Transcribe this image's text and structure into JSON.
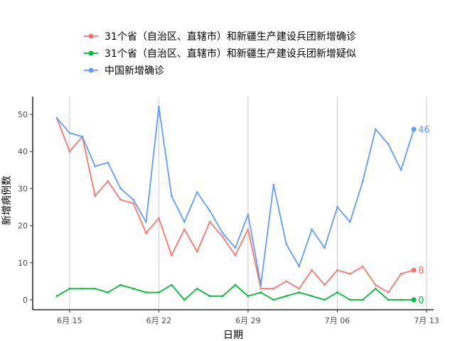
{
  "chart_data": {
    "type": "line",
    "xlabel": "日期",
    "ylabel": "新增病例数",
    "ylim": [
      0,
      52
    ],
    "y_ticks": [
      0,
      10,
      20,
      30,
      40,
      50
    ],
    "x_range": [
      "2020-06-13",
      "2020-07-13"
    ],
    "x_ticks": [
      {
        "date": "2020-06-15",
        "label": "6月 15"
      },
      {
        "date": "2020-06-22",
        "label": "6月 22"
      },
      {
        "date": "2020-06-29",
        "label": "6月 29"
      },
      {
        "date": "2020-07-06",
        "label": "7月 06"
      },
      {
        "date": "2020-07-13",
        "label": "7月 13"
      }
    ],
    "grid": "vertical major lines",
    "legend_position": "top",
    "x": [
      "2020-06-14",
      "2020-06-15",
      "2020-06-16",
      "2020-06-17",
      "2020-06-18",
      "2020-06-19",
      "2020-06-20",
      "2020-06-21",
      "2020-06-22",
      "2020-06-23",
      "2020-06-24",
      "2020-06-25",
      "2020-06-26",
      "2020-06-27",
      "2020-06-28",
      "2020-06-29",
      "2020-06-30",
      "2020-07-01",
      "2020-07-02",
      "2020-07-03",
      "2020-07-04",
      "2020-07-05",
      "2020-07-06",
      "2020-07-07",
      "2020-07-08",
      "2020-07-09",
      "2020-07-10",
      "2020-07-11",
      "2020-07-12"
    ],
    "series": [
      {
        "name": "31个省（自治区、直辖市）和新疆生产建设兵团新增确诊",
        "color": "#F8766D",
        "values": [
          49,
          40,
          44,
          28,
          32,
          27,
          26,
          18,
          22,
          12,
          19,
          13,
          21,
          17,
          12,
          19,
          3,
          3,
          5,
          3,
          8,
          4,
          8,
          7,
          9,
          4,
          2,
          7,
          8
        ],
        "end_label": "8"
      },
      {
        "name": "31个省（自治区、直辖市）和新疆生产建设兵团新增疑似",
        "color": "#00BA38",
        "values": [
          1,
          3,
          3,
          3,
          2,
          4,
          3,
          2,
          2,
          4,
          0,
          3,
          1,
          1,
          4,
          1,
          2,
          0,
          1,
          2,
          1,
          0,
          2,
          0,
          0,
          3,
          0,
          0,
          0
        ],
        "end_label": "0"
      },
      {
        "name": "中国新增确诊",
        "color": "#619CFF",
        "values": [
          49,
          45,
          44,
          36,
          37,
          30,
          27,
          21,
          52,
          28,
          21,
          29,
          24,
          18,
          14,
          23,
          4,
          31,
          15,
          9,
          19,
          14,
          25,
          21,
          32,
          46,
          42,
          35,
          46
        ],
        "end_label": "46"
      }
    ]
  }
}
